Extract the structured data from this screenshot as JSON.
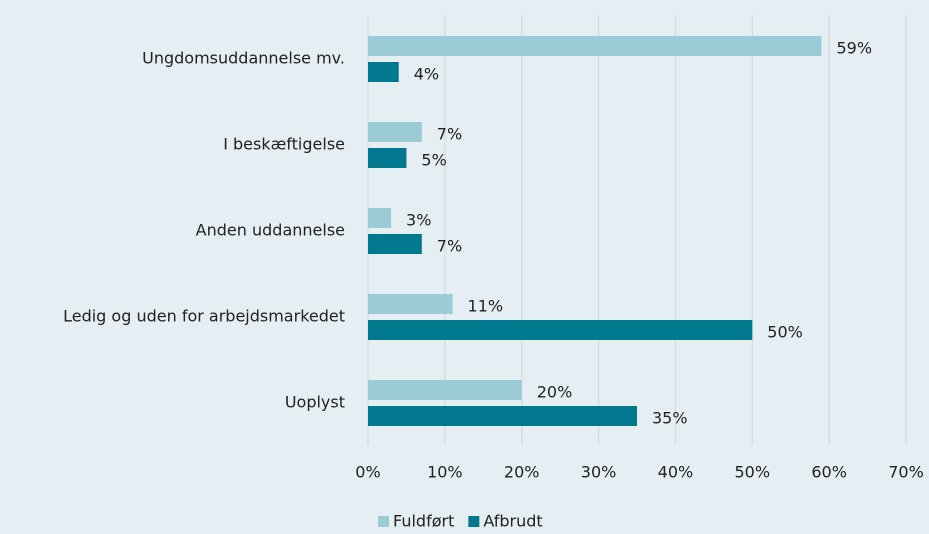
{
  "chart_data": {
    "type": "barh",
    "categories": [
      "Ungdomsuddannelse mv.",
      "I beskæftigelse",
      "Anden uddannelse",
      "Ledig og uden for arbejdsmarkedet",
      "Uoplyst"
    ],
    "series": [
      {
        "name": "Fuldført",
        "color": "#9ccbd8",
        "values": [
          59,
          7,
          3,
          11,
          20
        ],
        "value_labels": [
          "59%",
          "7%",
          "3%",
          "11%",
          "20%"
        ]
      },
      {
        "name": "Afbrudt",
        "color": "#00798f",
        "values": [
          4,
          5,
          7,
          50,
          35
        ],
        "value_labels": [
          "4%",
          "5%",
          "7%",
          "50%",
          "35%"
        ]
      }
    ],
    "xlim": [
      0,
      70
    ],
    "xticks": [
      {
        "value": 0,
        "label": "0%"
      },
      {
        "value": 10,
        "label": "10%"
      },
      {
        "value": 20,
        "label": "20%"
      },
      {
        "value": 30,
        "label": "30%"
      },
      {
        "value": 40,
        "label": "40%"
      },
      {
        "value": 50,
        "label": "50%"
      },
      {
        "value": 60,
        "label": "60%"
      },
      {
        "value": 70,
        "label": "70%"
      }
    ],
    "grid": true,
    "legend": "bottom"
  }
}
